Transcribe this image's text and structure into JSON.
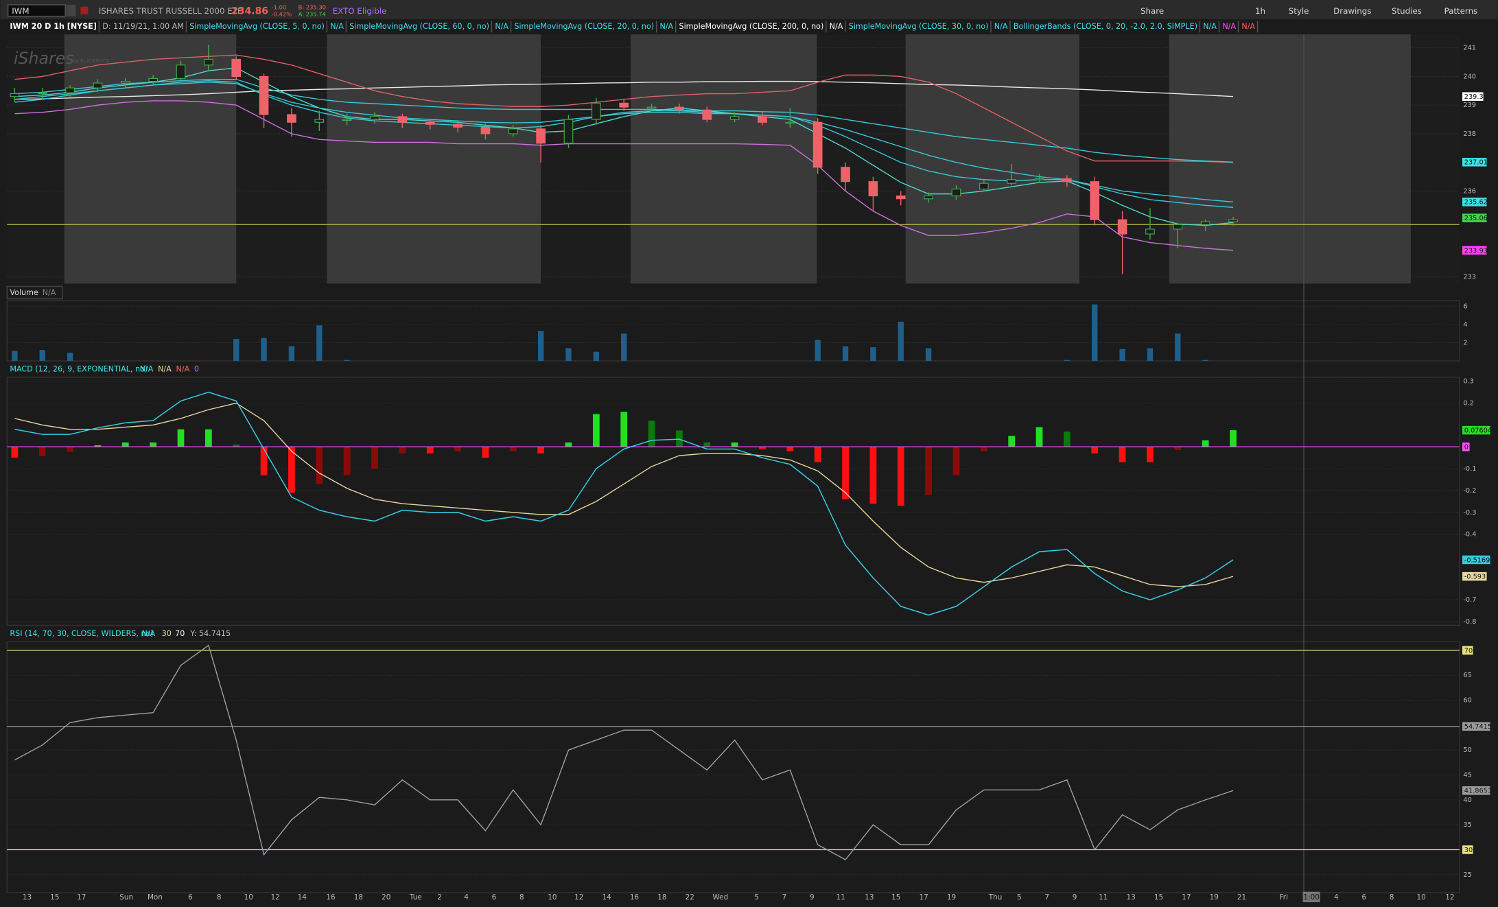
{
  "toolbar": {
    "symbol": "IWM",
    "description": "ISHARES TRUST RUSSELL 2000 ETF",
    "last": "234.86",
    "change": "-1.00",
    "change_pct": "-0.42%",
    "bid": "B: 235.30",
    "ask": "A: 235.74",
    "badge": "EXTO Eligible",
    "buttons": [
      "Share",
      "1h",
      "Style",
      "Drawings",
      "Studies",
      "Patterns"
    ]
  },
  "legend": {
    "items": [
      {
        "text": "IWM 20 D 1h [NYSE]",
        "color": "#ffffff"
      },
      {
        "text": "D: 11/19/21, 1:00 AM",
        "color": "#bdbdbd"
      },
      {
        "text": "SimpleMovingAvg (CLOSE, 5, 0, no)",
        "color": "#40e0e8"
      },
      {
        "text": "N/A",
        "color": "#40e0e8"
      },
      {
        "text": "SimpleMovingAvg (CLOSE, 60, 0, no)",
        "color": "#40e0e8"
      },
      {
        "text": "N/A",
        "color": "#40e0e8"
      },
      {
        "text": "SimpleMovingAvg (CLOSE, 20, 0, no)",
        "color": "#40e0e8"
      },
      {
        "text": "N/A",
        "color": "#40e0e8"
      },
      {
        "text": "SimpleMovingAvg (CLOSE, 200, 0, no)",
        "color": "#ffffff"
      },
      {
        "text": "N/A",
        "color": "#ffffff"
      },
      {
        "text": "SimpleMovingAvg (CLOSE, 30, 0, no)",
        "color": "#40e0e8"
      },
      {
        "text": "N/A",
        "color": "#40e0e8"
      },
      {
        "text": "BollingerBands (CLOSE, 0, 20, -2.0, 2.0, SIMPLE)",
        "color": "#40e0e8"
      },
      {
        "text": "N/A",
        "color": "#40e0e8"
      },
      {
        "text": "N/A",
        "color": "#ff50ff"
      },
      {
        "text": "N/A",
        "color": "#ff6060"
      }
    ]
  },
  "watermark": {
    "brand": "iShares",
    "sub": "by BLACKROCK"
  },
  "price_panel": {
    "ylim": [
      232.77,
      241.47
    ],
    "yticks": [
      233,
      236,
      238,
      239,
      240,
      241
    ],
    "open": [
      239.3,
      239.4,
      239.43,
      239.6,
      239.77,
      239.83,
      239.93,
      240.4,
      240.6,
      240.0,
      238.67,
      238.4,
      238.5,
      238.5,
      238.6,
      238.4,
      238.33,
      238.23,
      238.0,
      238.17,
      237.67,
      238.5,
      239.07,
      238.93,
      238.93,
      238.83,
      238.5,
      238.6,
      238.4,
      238.4,
      236.83,
      236.33,
      235.83,
      235.73,
      235.83,
      236.07,
      236.27,
      236.4,
      236.43,
      236.33,
      235.0,
      234.5,
      234.67,
      234.83,
      234.93
    ],
    "high": [
      239.6,
      239.6,
      239.7,
      239.9,
      239.95,
      240.05,
      240.55,
      241.1,
      240.7,
      240.1,
      238.9,
      238.8,
      238.7,
      238.75,
      238.7,
      238.5,
      238.45,
      238.35,
      238.3,
      238.3,
      238.65,
      239.25,
      239.2,
      239.05,
      239.05,
      238.95,
      238.75,
      238.75,
      238.9,
      238.55,
      237.0,
      236.5,
      236.0,
      235.95,
      236.2,
      236.4,
      236.95,
      236.6,
      236.55,
      236.5,
      235.3,
      235.4,
      234.9,
      235.0,
      235.1
    ],
    "low": [
      239.1,
      239.2,
      239.3,
      239.45,
      239.6,
      239.7,
      239.8,
      240.2,
      239.9,
      238.2,
      237.9,
      238.1,
      238.3,
      238.35,
      238.2,
      238.15,
      238.05,
      237.8,
      237.9,
      237.0,
      237.5,
      238.3,
      238.8,
      238.8,
      238.7,
      238.4,
      238.4,
      238.3,
      238.2,
      236.6,
      236.0,
      235.3,
      235.5,
      235.6,
      235.7,
      236.0,
      236.2,
      236.3,
      236.15,
      234.8,
      233.1,
      234.3,
      234.0,
      234.6,
      234.8
    ],
    "close": [
      239.4,
      239.43,
      239.6,
      239.77,
      239.83,
      239.93,
      240.4,
      240.6,
      240.0,
      238.67,
      238.4,
      238.5,
      238.5,
      238.6,
      238.4,
      238.33,
      238.23,
      238.0,
      238.17,
      237.67,
      238.5,
      239.07,
      238.93,
      238.93,
      238.83,
      238.5,
      238.6,
      238.4,
      238.4,
      236.83,
      236.33,
      235.83,
      235.73,
      235.83,
      236.07,
      236.27,
      236.4,
      236.43,
      236.33,
      235.0,
      234.5,
      234.67,
      234.83,
      234.93,
      235.0
    ],
    "up_color": "#3fae49",
    "down_color": "#f0626a",
    "lines": [
      {
        "color": "#e8e8e8",
        "values": [
          239.2,
          239.22,
          239.25,
          239.28,
          239.3,
          239.33,
          239.36,
          239.4,
          239.45,
          239.5,
          239.52,
          239.55,
          239.57,
          239.6,
          239.62,
          239.65,
          239.67,
          239.7,
          239.72,
          239.73,
          239.75,
          239.77,
          239.78,
          239.8,
          239.8,
          239.82,
          239.82,
          239.83,
          239.83,
          239.82,
          239.8,
          239.78,
          239.75,
          239.72,
          239.7,
          239.67,
          239.63,
          239.6,
          239.57,
          239.53,
          239.48,
          239.44,
          239.4,
          239.35,
          239.3
        ]
      },
      {
        "color": "#e0606a",
        "values": [
          239.9,
          240.0,
          240.2,
          240.4,
          240.5,
          240.6,
          240.65,
          240.7,
          240.75,
          240.6,
          240.4,
          240.1,
          239.8,
          239.5,
          239.3,
          239.15,
          239.05,
          239.0,
          238.95,
          238.95,
          239.0,
          239.1,
          239.2,
          239.3,
          239.35,
          239.4,
          239.4,
          239.45,
          239.5,
          239.8,
          240.05,
          240.05,
          240.0,
          239.8,
          239.4,
          238.9,
          238.4,
          237.9,
          237.4,
          237.05,
          237.05,
          237.05,
          237.05,
          237.03,
          237.0
        ]
      },
      {
        "color": "#d070e0",
        "values": [
          238.7,
          238.75,
          238.85,
          239.0,
          239.1,
          239.15,
          239.15,
          239.1,
          239.0,
          238.5,
          238.0,
          237.8,
          237.75,
          237.7,
          237.7,
          237.7,
          237.65,
          237.65,
          237.65,
          237.6,
          237.65,
          237.65,
          237.65,
          237.65,
          237.65,
          237.65,
          237.65,
          237.63,
          237.6,
          236.9,
          236.0,
          235.3,
          234.8,
          234.45,
          234.45,
          234.55,
          234.7,
          234.9,
          235.2,
          235.1,
          234.4,
          234.2,
          234.1,
          234.0,
          233.93
        ]
      },
      {
        "color": "#38c8d8",
        "values": [
          239.4,
          239.45,
          239.55,
          239.65,
          239.75,
          239.8,
          239.85,
          239.9,
          239.9,
          239.6,
          239.35,
          239.2,
          239.1,
          239.05,
          239.0,
          238.95,
          238.9,
          238.87,
          238.85,
          238.85,
          238.85,
          238.85,
          238.85,
          238.85,
          238.83,
          238.8,
          238.8,
          238.77,
          238.75,
          238.65,
          238.5,
          238.35,
          238.2,
          238.05,
          237.9,
          237.8,
          237.7,
          237.6,
          237.5,
          237.35,
          237.25,
          237.17,
          237.1,
          237.05,
          237.01
        ]
      },
      {
        "color": "#38c8d8",
        "values": [
          239.2,
          239.3,
          239.4,
          239.5,
          239.6,
          239.7,
          239.75,
          239.8,
          239.75,
          239.4,
          239.1,
          238.9,
          238.75,
          238.65,
          238.55,
          238.5,
          238.45,
          238.4,
          238.38,
          238.4,
          238.5,
          238.6,
          238.7,
          238.75,
          238.75,
          238.7,
          238.7,
          238.65,
          238.6,
          238.4,
          238.15,
          237.85,
          237.55,
          237.25,
          237.0,
          236.8,
          236.65,
          236.5,
          236.4,
          236.2,
          236.0,
          235.9,
          235.8,
          235.7,
          235.62
        ]
      },
      {
        "color": "#38c8d8",
        "values": [
          239.1,
          239.2,
          239.35,
          239.5,
          239.6,
          239.7,
          239.8,
          239.85,
          239.8,
          239.35,
          239.0,
          238.75,
          238.55,
          238.45,
          238.4,
          238.35,
          238.3,
          238.25,
          238.2,
          238.25,
          238.4,
          238.6,
          238.75,
          238.8,
          238.8,
          238.75,
          238.7,
          238.65,
          238.6,
          238.3,
          237.9,
          237.45,
          237.0,
          236.7,
          236.5,
          236.4,
          236.35,
          236.4,
          236.4,
          236.15,
          235.9,
          235.7,
          235.6,
          235.5,
          235.43
        ]
      },
      {
        "color": "#50d8c8",
        "values": [
          239.3,
          239.35,
          239.45,
          239.6,
          239.7,
          239.8,
          239.95,
          240.2,
          240.3,
          239.8,
          239.3,
          238.9,
          238.6,
          238.5,
          238.5,
          238.45,
          238.4,
          238.3,
          238.2,
          238.05,
          238.1,
          238.35,
          238.6,
          238.8,
          238.9,
          238.8,
          238.7,
          238.6,
          238.5,
          238.0,
          237.5,
          236.9,
          236.3,
          235.9,
          235.9,
          236.0,
          236.15,
          236.3,
          236.35,
          235.95,
          235.5,
          235.1,
          234.85,
          234.8,
          234.9
        ]
      }
    ],
    "hline": {
      "value": 234.83,
      "color": "#b8b840"
    },
    "tags": [
      {
        "value": 239.3,
        "color": "#ffffff"
      },
      {
        "value": 237.01,
        "color": "#40e0e8"
      },
      {
        "value": 235.62,
        "color": "#40e0e8"
      },
      {
        "value": 235.06,
        "color": "#3fd24a"
      },
      {
        "value": 233.93,
        "color": "#ff40ff"
      }
    ]
  },
  "volume_panel": {
    "label": "Volume",
    "status": "N/A",
    "ylim": [
      0,
      6.6
    ],
    "yticks": [
      2,
      4,
      6
    ],
    "color": "#1f5f8b",
    "values": [
      1.1,
      1.2,
      0.9,
      0,
      0,
      0,
      0,
      0,
      2.4,
      2.5,
      1.6,
      3.9,
      0.1,
      0,
      0,
      0,
      0,
      0,
      0,
      3.3,
      1.4,
      1.0,
      3.0,
      0,
      0,
      0,
      0,
      0,
      0,
      2.3,
      1.6,
      1.5,
      4.3,
      1.4,
      0,
      0,
      0,
      0,
      0.1,
      6.2,
      1.3,
      1.4,
      3.0,
      0.1,
      0
    ]
  },
  "macd_panel": {
    "label": "MACD (12, 26, 9, EXPONENTIAL, no)",
    "status": [
      "N/A",
      "N/A",
      "N/A",
      "0"
    ],
    "status_colors": [
      "#40e0e8",
      "#e8d890",
      "#ff6060",
      "#ff50ff"
    ],
    "ylim": [
      -0.817,
      0.319
    ],
    "yticks": [
      0.3,
      0.2,
      -0.1,
      -0.2,
      -0.3,
      -0.4,
      -0.7,
      -0.8
    ],
    "macd": {
      "color": "#38c8e0",
      "values": [
        0.08,
        0.057,
        0.057,
        0.087,
        0.11,
        0.12,
        0.21,
        0.25,
        0.21,
        -0.01,
        -0.23,
        -0.29,
        -0.32,
        -0.34,
        -0.29,
        -0.3,
        -0.3,
        -0.34,
        -0.32,
        -0.34,
        -0.29,
        -0.1,
        -0.01,
        0.03,
        0.035,
        -0.01,
        -0.01,
        -0.05,
        -0.08,
        -0.18,
        -0.45,
        -0.6,
        -0.73,
        -0.77,
        -0.73,
        -0.64,
        -0.55,
        -0.48,
        -0.47,
        -0.58,
        -0.66,
        -0.7,
        -0.655,
        -0.6,
        -0.517
      ]
    },
    "signal": {
      "color": "#e8d8a0",
      "values": [
        0.13,
        0.1,
        0.08,
        0.08,
        0.09,
        0.1,
        0.13,
        0.17,
        0.2,
        0.12,
        -0.02,
        -0.12,
        -0.19,
        -0.24,
        -0.26,
        -0.27,
        -0.28,
        -0.29,
        -0.3,
        -0.31,
        -0.31,
        -0.25,
        -0.17,
        -0.09,
        -0.04,
        -0.03,
        -0.03,
        -0.04,
        -0.06,
        -0.11,
        -0.21,
        -0.34,
        -0.46,
        -0.55,
        -0.6,
        -0.62,
        -0.6,
        -0.57,
        -0.54,
        -0.55,
        -0.59,
        -0.63,
        -0.64,
        -0.63,
        -0.593
      ]
    },
    "histogram": [
      -0.05,
      -0.043,
      -0.023,
      0.007,
      0.02,
      0.02,
      0.08,
      0.08,
      0.01,
      -0.13,
      -0.21,
      -0.17,
      -0.13,
      -0.1,
      -0.03,
      -0.03,
      -0.02,
      -0.05,
      -0.02,
      -0.03,
      0.02,
      0.15,
      0.16,
      0.12,
      0.075,
      0.02,
      0.02,
      -0.01,
      -0.02,
      -0.07,
      -0.24,
      -0.26,
      -0.27,
      -0.22,
      -0.13,
      -0.02,
      0.05,
      0.09,
      0.07,
      -0.03,
      -0.07,
      -0.07,
      -0.015,
      0.03,
      0.07604
    ],
    "hist_colors": {
      "up_rising": "#20e020",
      "up_falling": "#0a7a0a",
      "down_falling": "#ff1010",
      "down_rising": "#8a0a0a"
    },
    "tags": [
      {
        "value": 0.07604,
        "color": "#20e020"
      },
      {
        "value": 0,
        "color": "#ff50ff",
        "line": true
      },
      {
        "value": -0.5169,
        "color": "#38c8e0"
      },
      {
        "value": -0.593,
        "color": "#e8d8a0"
      }
    ]
  },
  "rsi_panel": {
    "label": "RSI (14, 70, 30, CLOSE, WILDERS, no)",
    "status": [
      "N/A",
      "30",
      "70",
      "Y: 54.7415"
    ],
    "status_colors": [
      "#40e0e8",
      "#e8e0a0",
      "#ffffff",
      "#bdbdbd"
    ],
    "ylim": [
      21.38,
      71.76
    ],
    "yticks": [
      65,
      60,
      50,
      45,
      40,
      35,
      25
    ],
    "color": "#a0a0a0",
    "values": [
      48,
      51,
      55.5,
      56.5,
      57,
      57.5,
      67,
      71,
      52,
      29,
      36,
      40.5,
      40,
      39,
      44,
      40,
      40,
      33.8,
      42,
      35,
      50,
      52,
      54,
      54,
      50,
      46,
      52,
      44,
      46,
      31,
      28,
      35,
      31,
      31,
      38,
      42,
      42,
      42,
      44,
      30,
      37,
      34,
      38,
      40,
      41.8653
    ],
    "tags": [
      {
        "value": 70,
        "color": "#e8e080",
        "line": true
      },
      {
        "value": 54.7415,
        "color": "#9a9a9a",
        "line": true
      },
      {
        "value": 41.8653,
        "color": "#9a9a9a"
      },
      {
        "value": 30,
        "color": "#e8e080",
        "line": true
      }
    ]
  },
  "time_axis": {
    "labels": [
      "13",
      "15",
      "17",
      "Sun",
      "Mon",
      "6",
      "8",
      "10",
      "12",
      "14",
      "16",
      "18",
      "20",
      "Tue",
      "2",
      "4",
      "6",
      "8",
      "10",
      "12",
      "14",
      "16",
      "18",
      "22",
      "Wed",
      "5",
      "7",
      "9",
      "11",
      "13",
      "15",
      "17",
      "19",
      "Thu",
      "5",
      "7",
      "9",
      "11",
      "13",
      "15",
      "17",
      "19",
      "21",
      "Fri",
      "1:00",
      "4",
      "6",
      "8",
      "10",
      "12"
    ]
  }
}
